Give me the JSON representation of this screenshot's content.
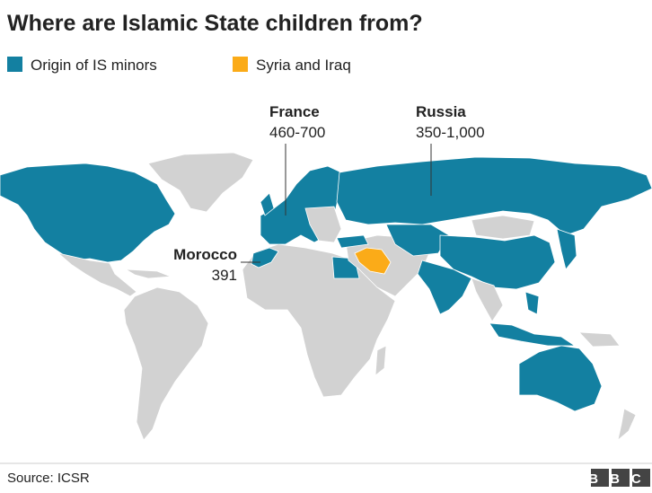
{
  "header": {
    "title": "Where are Islamic State children from?"
  },
  "legend": [
    {
      "label": "Origin of IS minors",
      "color": "#1380a1"
    },
    {
      "label": "Syria and Iraq",
      "color": "#fbab18"
    }
  ],
  "annotations": [
    {
      "country": "France",
      "value": "460-700"
    },
    {
      "country": "Russia",
      "value": "350-1,000"
    },
    {
      "country": "Morocco",
      "value": "391"
    }
  ],
  "footer": {
    "source": "Source: ICSR",
    "logo": "BBC"
  }
}
